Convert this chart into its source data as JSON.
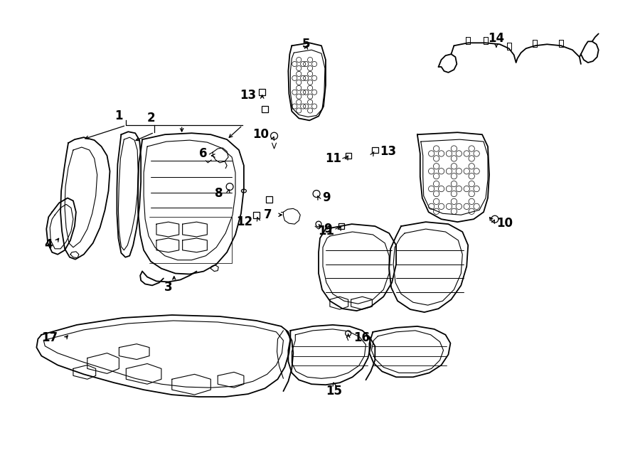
{
  "bg_color": "#ffffff",
  "line_color": "#000000",
  "figsize": [
    9.0,
    6.61
  ],
  "dpi": 100,
  "lw_main": 1.3,
  "lw_detail": 0.8,
  "label_fontsize": 12
}
